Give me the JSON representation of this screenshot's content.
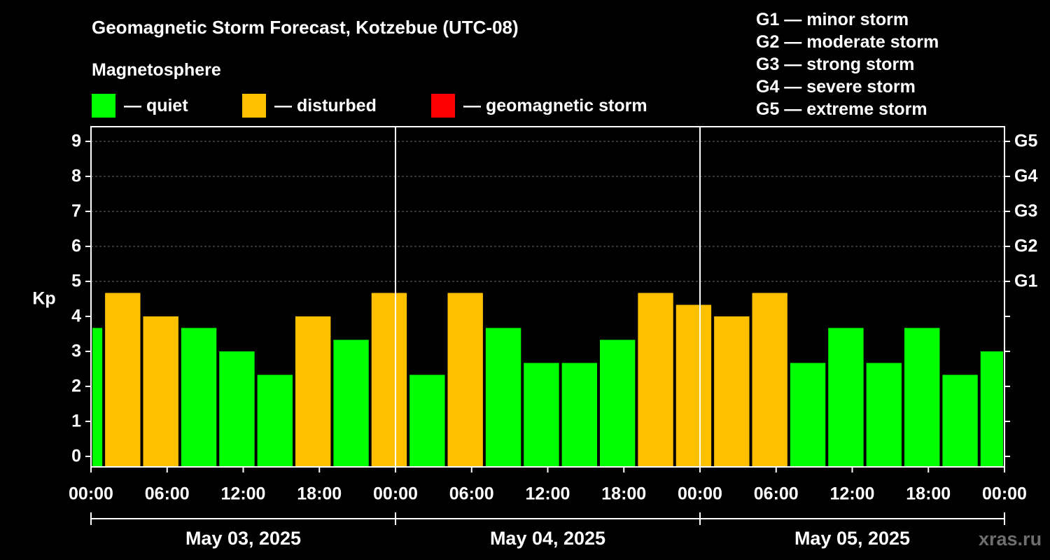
{
  "title": "Geomagnetic Storm Forecast, Kotzebue (UTC-08)",
  "subtitle": "Magnetosphere",
  "legend": [
    {
      "label": "— quiet",
      "color": "#00ff00"
    },
    {
      "label": "— disturbed",
      "color": "#ffc000"
    },
    {
      "label": "— geomagnetic storm",
      "color": "#ff0000"
    }
  ],
  "storm_levels": [
    "G1 — minor storm",
    "G2 — moderate storm",
    "G3 — strong storm",
    "G4 — severe storm",
    "G5 — extreme storm"
  ],
  "watermark": "xras.ru",
  "chart_data": {
    "type": "bar",
    "title": "Geomagnetic Storm Forecast, Kotzebue (UTC-08)",
    "ylabel": "Kp",
    "ylim": [
      0,
      9
    ],
    "yticks": [
      "0",
      "1",
      "2",
      "3",
      "4",
      "5",
      "6",
      "7",
      "8",
      "9"
    ],
    "right_axis_ticks": [
      {
        "kp": 5,
        "label": "G1"
      },
      {
        "kp": 6,
        "label": "G2"
      },
      {
        "kp": 7,
        "label": "G3"
      },
      {
        "kp": 8,
        "label": "G4"
      },
      {
        "kp": 9,
        "label": "G5"
      }
    ],
    "xlim_hours": [
      0,
      72
    ],
    "xticks": [
      {
        "hour": 0,
        "label": "00:00"
      },
      {
        "hour": 6,
        "label": "06:00"
      },
      {
        "hour": 12,
        "label": "12:00"
      },
      {
        "hour": 18,
        "label": "18:00"
      },
      {
        "hour": 24,
        "label": "00:00"
      },
      {
        "hour": 30,
        "label": "06:00"
      },
      {
        "hour": 36,
        "label": "12:00"
      },
      {
        "hour": 42,
        "label": "18:00"
      },
      {
        "hour": 48,
        "label": "00:00"
      },
      {
        "hour": 54,
        "label": "06:00"
      },
      {
        "hour": 60,
        "label": "12:00"
      },
      {
        "hour": 66,
        "label": "18:00"
      },
      {
        "hour": 72,
        "label": "00:00"
      }
    ],
    "dates": [
      {
        "label": "May 03, 2025",
        "start": 0,
        "end": 24
      },
      {
        "label": "May 04, 2025",
        "start": 24,
        "end": 48
      },
      {
        "label": "May 05, 2025",
        "start": 48,
        "end": 72
      }
    ],
    "day_dividers_hours": [
      24,
      48
    ],
    "bars": [
      {
        "start": 0,
        "end": 1,
        "kp": 3.67,
        "level": "quiet"
      },
      {
        "start": 1,
        "end": 4,
        "kp": 4.67,
        "level": "disturbed"
      },
      {
        "start": 4,
        "end": 7,
        "kp": 4.0,
        "level": "disturbed"
      },
      {
        "start": 7,
        "end": 10,
        "kp": 3.67,
        "level": "quiet"
      },
      {
        "start": 10,
        "end": 13,
        "kp": 3.0,
        "level": "quiet"
      },
      {
        "start": 13,
        "end": 16,
        "kp": 2.33,
        "level": "quiet"
      },
      {
        "start": 16,
        "end": 19,
        "kp": 4.0,
        "level": "disturbed"
      },
      {
        "start": 19,
        "end": 22,
        "kp": 3.33,
        "level": "quiet"
      },
      {
        "start": 22,
        "end": 25,
        "kp": 4.67,
        "level": "disturbed"
      },
      {
        "start": 25,
        "end": 28,
        "kp": 2.33,
        "level": "quiet"
      },
      {
        "start": 28,
        "end": 31,
        "kp": 4.67,
        "level": "disturbed"
      },
      {
        "start": 31,
        "end": 34,
        "kp": 3.67,
        "level": "quiet"
      },
      {
        "start": 34,
        "end": 37,
        "kp": 2.67,
        "level": "quiet"
      },
      {
        "start": 37,
        "end": 40,
        "kp": 2.67,
        "level": "quiet"
      },
      {
        "start": 40,
        "end": 43,
        "kp": 3.33,
        "level": "quiet"
      },
      {
        "start": 43,
        "end": 46,
        "kp": 4.67,
        "level": "disturbed"
      },
      {
        "start": 46,
        "end": 49,
        "kp": 4.33,
        "level": "disturbed"
      },
      {
        "start": 49,
        "end": 52,
        "kp": 4.0,
        "level": "disturbed"
      },
      {
        "start": 52,
        "end": 55,
        "kp": 4.67,
        "level": "disturbed"
      },
      {
        "start": 55,
        "end": 58,
        "kp": 2.67,
        "level": "quiet"
      },
      {
        "start": 58,
        "end": 61,
        "kp": 3.67,
        "level": "quiet"
      },
      {
        "start": 61,
        "end": 64,
        "kp": 2.67,
        "level": "quiet"
      },
      {
        "start": 64,
        "end": 67,
        "kp": 3.67,
        "level": "quiet"
      },
      {
        "start": 67,
        "end": 70,
        "kp": 2.33,
        "level": "quiet"
      },
      {
        "start": 70,
        "end": 72,
        "kp": 3.0,
        "level": "quiet"
      }
    ],
    "level_colors": {
      "quiet": "#00ff00",
      "disturbed": "#ffc000",
      "storm": "#ff0000"
    }
  }
}
